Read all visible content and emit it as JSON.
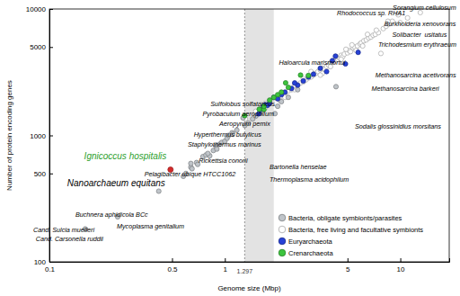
{
  "chart_data": {
    "type": "scatter",
    "log": true,
    "x_label": "Genome size (Mbp)",
    "y_label": "Number of protein encoding genes",
    "xlim": [
      0.1,
      19
    ],
    "ylim": [
      100,
      10000
    ],
    "xticks": [
      0.1,
      0.5,
      1,
      5,
      10
    ],
    "yticks": [
      100,
      500,
      1000,
      5000,
      10000
    ],
    "legend": "lower right",
    "shaded_x": [
      1.297,
      1.9
    ],
    "series": [
      {
        "name": "Bacteria, free living and facultative symbionts",
        "color": "#ffffff",
        "marker": "circle",
        "x": [
          1.31,
          1.6,
          1.7,
          1.8,
          1.9,
          2.0,
          2.1,
          2.2,
          2.3,
          2.4,
          2.5,
          2.6,
          2.7,
          2.8,
          2.9,
          3.0,
          3.1,
          3.2,
          3.3,
          3.4,
          3.5,
          3.6,
          3.7,
          3.8,
          3.9,
          4.0,
          4.1,
          4.2,
          4.4,
          4.5,
          4.6,
          4.7,
          4.8,
          5.0,
          5.1,
          5.2,
          5.4,
          5.5,
          5.7,
          5.9,
          6.0,
          6.2,
          6.4,
          6.6,
          6.8,
          7.0,
          7.2,
          7.75,
          7.5,
          8.0,
          8.3,
          8.6,
          9.0,
          9.7,
          9.73,
          9.97,
          13.0,
          1.5,
          1.7,
          2.2,
          2.5,
          2.8,
          3.1,
          3.6,
          4.0,
          4.3,
          4.9,
          5.3,
          6.1,
          6.5,
          7.3,
          8.5,
          11.0,
          2.05,
          3.5,
          4.6,
          5.6
        ],
        "values": [
          1354,
          1750,
          1800,
          1900,
          1950,
          2000,
          2050,
          2150,
          2250,
          2300,
          2450,
          2500,
          2600,
          2650,
          2750,
          2850,
          2900,
          3000,
          3100,
          3200,
          3300,
          3400,
          3350,
          3500,
          3600,
          3750,
          3800,
          3900,
          4000,
          4100,
          4300,
          4200,
          4400,
          4500,
          4700,
          4600,
          4900,
          5000,
          5100,
          5300,
          5400,
          5600,
          5700,
          5900,
          6000,
          6200,
          6300,
          4450,
          6500,
          7000,
          7300,
          7600,
          8000,
          9145,
          9000,
          7800,
          9370,
          1550,
          1650,
          2000,
          2300,
          2800,
          3200,
          3100,
          3500,
          4200,
          4800,
          5200,
          5100,
          6300,
          6800,
          8000,
          8500,
          1900,
          3000,
          4000,
          4700
        ]
      },
      {
        "name": "Bacteria, obligate symbionts/parasites",
        "color": "#bfc4c9",
        "marker": "circle",
        "x": [
          0.16,
          0.245,
          0.42,
          0.58,
          0.6,
          0.64,
          0.65,
          0.69,
          0.7,
          0.75,
          0.78,
          0.82,
          0.86,
          0.89,
          0.93,
          0.96,
          1.0,
          1.03,
          1.05,
          1.1,
          1.11,
          1.17,
          1.27,
          1.3,
          1.36,
          1.44,
          1.5,
          1.58,
          1.93,
          2.0,
          2.1,
          2.3,
          2.6,
          4.3,
          0.8,
          0.64,
          0.9
        ],
        "values": [
          182,
          227,
          362,
          475,
          500,
          560,
          545,
          610,
          590,
          680,
          700,
          690,
          760,
          820,
          850,
          880,
          900,
          950,
          1000,
          1050,
          1020,
          1100,
          1374,
          1200,
          1250,
          1350,
          1420,
          1500,
          1488,
          1700,
          1850,
          2000,
          2300,
          2430,
          720,
          600,
          780
        ]
      },
      {
        "name": "Euryarchaeota",
        "color": "#2741d6",
        "marker": "circle",
        "x": [
          1.56,
          4.27,
          5.75,
          4.87,
          1.66,
          1.7,
          1.75,
          1.8,
          1.9,
          2.0,
          2.1,
          2.2,
          2.4,
          2.6,
          2.8,
          3.0,
          3.2,
          3.5,
          4.1,
          1.6,
          2.5,
          3.8
        ],
        "values": [
          1482,
          4240,
          4540,
          3680,
          1700,
          1750,
          1730,
          1800,
          2000,
          1950,
          2100,
          2200,
          2350,
          2500,
          2700,
          2900,
          3050,
          3400,
          3900,
          1600,
          2600,
          3200
        ]
      },
      {
        "name": "Crenarchaeota",
        "color": "#3dc43d",
        "marker": "circle",
        "x": [
          1.297,
          1.57,
          1.67,
          1.67,
          2.22,
          2.99,
          1.9,
          2.0,
          2.1,
          2.3,
          2.7,
          1.8
        ],
        "values": [
          1434,
          1610,
          1602,
          1700,
          2605,
          2977,
          2000,
          2100,
          2200,
          2400,
          3000,
          1900
        ]
      }
    ],
    "annotations": [
      {
        "text": "Sorangium cellulosum",
        "x": 13.0,
        "y": 9370
      },
      {
        "text": "Rhodococcus sp. RHA1",
        "x": 9.7,
        "y": 9145
      },
      {
        "text": "Burkholderia xenovorans",
        "x": 9.73,
        "y": 9000
      },
      {
        "text": "Solibacter  usitatus",
        "x": 9.97,
        "y": 7800
      },
      {
        "text": "Trichodesmium erythraeum",
        "x": 7.75,
        "y": 4450
      },
      {
        "text": "Haloarcula marismortui",
        "x": 4.27,
        "y": 4240
      },
      {
        "text": "Methanosarcina acetivorans",
        "x": 5.75,
        "y": 4540
      },
      {
        "text": "Methanosarcina barkeri",
        "x": 4.87,
        "y": 3680
      },
      {
        "text": "Sodalis glossinidius morsitans",
        "x": 4.3,
        "y": 2430
      },
      {
        "text": "Sulfolobus solfataricus",
        "x": 2.99,
        "y": 2977
      },
      {
        "text": "Pyrobaculum aerophilum",
        "x": 2.22,
        "y": 2605
      },
      {
        "text": "Aeropyrum pernix",
        "x": 1.67,
        "y": 1700
      },
      {
        "text": "Hyperthermus butylicus",
        "x": 1.67,
        "y": 1602
      },
      {
        "text": "Staphylothermus marinus",
        "x": 1.57,
        "y": 1610
      },
      {
        "text": "Ignicoccus hospitalis",
        "x": 1.297,
        "y": 1434,
        "color": "#2ca02c"
      },
      {
        "text": "Rickettsia conorii",
        "x": 1.27,
        "y": 1374
      },
      {
        "text": "Pelagibacter ubique HTCC1062",
        "x": 1.31,
        "y": 1354
      },
      {
        "text": "Bartonella henselae",
        "x": 1.93,
        "y": 1488
      },
      {
        "text": "Thermoplasma acidophilum",
        "x": 1.56,
        "y": 1482
      },
      {
        "text": "Nanoarchaeum equitans",
        "x": 0.49,
        "y": 536,
        "marker": "circle",
        "color": "#d42a2a"
      },
      {
        "text": "Buchnera aphidicola BCc",
        "x": 0.42,
        "y": 362
      },
      {
        "text": "Mycoplasma genitalium",
        "x": 0.58,
        "y": 475
      },
      {
        "text": "Cand. Sulcia muelleri",
        "x": 0.245,
        "y": 227
      },
      {
        "text": "Cand. Carsonella ruddii",
        "x": 0.16,
        "y": 182
      }
    ]
  }
}
